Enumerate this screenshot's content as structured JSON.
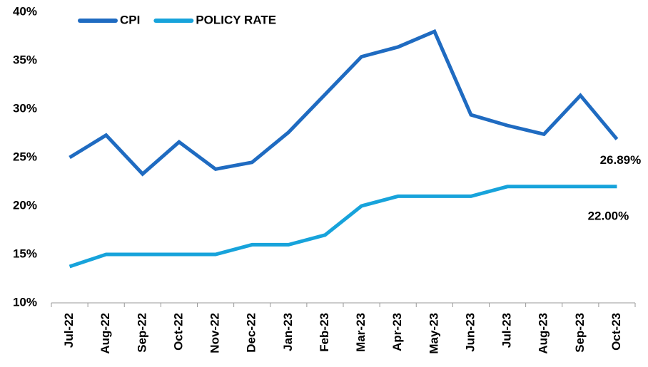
{
  "chart_data": {
    "type": "line",
    "categories": [
      "Jul-22",
      "Aug-22",
      "Sep-22",
      "Oct-22",
      "Nov-22",
      "Dec-22",
      "Jan-23",
      "Feb-23",
      "Mar-23",
      "Apr-23",
      "May-23",
      "Jun-23",
      "Jul-23",
      "Aug-23",
      "Sep-23",
      "Oct-23"
    ],
    "series": [
      {
        "name": "CPI",
        "color": "#1f6bc1",
        "values": [
          25.0,
          27.3,
          23.3,
          26.6,
          23.8,
          24.5,
          27.6,
          31.5,
          35.4,
          36.4,
          38.0,
          29.4,
          28.3,
          27.4,
          31.4,
          26.89
        ],
        "value_labels": [
          null,
          null,
          null,
          null,
          null,
          null,
          null,
          null,
          null,
          null,
          null,
          null,
          null,
          null,
          null,
          "26.89%"
        ]
      },
      {
        "name": "POLICY RATE",
        "color": "#17a3db",
        "values": [
          13.75,
          15,
          15,
          15,
          15,
          16,
          16,
          17,
          20,
          21,
          21,
          21,
          22,
          22,
          22,
          22.0
        ],
        "value_labels": [
          null,
          null,
          null,
          null,
          null,
          null,
          null,
          null,
          null,
          null,
          null,
          null,
          null,
          null,
          null,
          "22.00%"
        ]
      }
    ],
    "ylim": [
      10,
      40
    ],
    "yticks": [
      {
        "value": 10,
        "label": "10%"
      },
      {
        "value": 15,
        "label": "15%"
      },
      {
        "value": 20,
        "label": "20%"
      },
      {
        "value": 25,
        "label": "25%"
      },
      {
        "value": 30,
        "label": "30%"
      },
      {
        "value": 35,
        "label": "35%"
      },
      {
        "value": 40,
        "label": "40%"
      }
    ],
    "grid": false,
    "legend": "top-left"
  }
}
